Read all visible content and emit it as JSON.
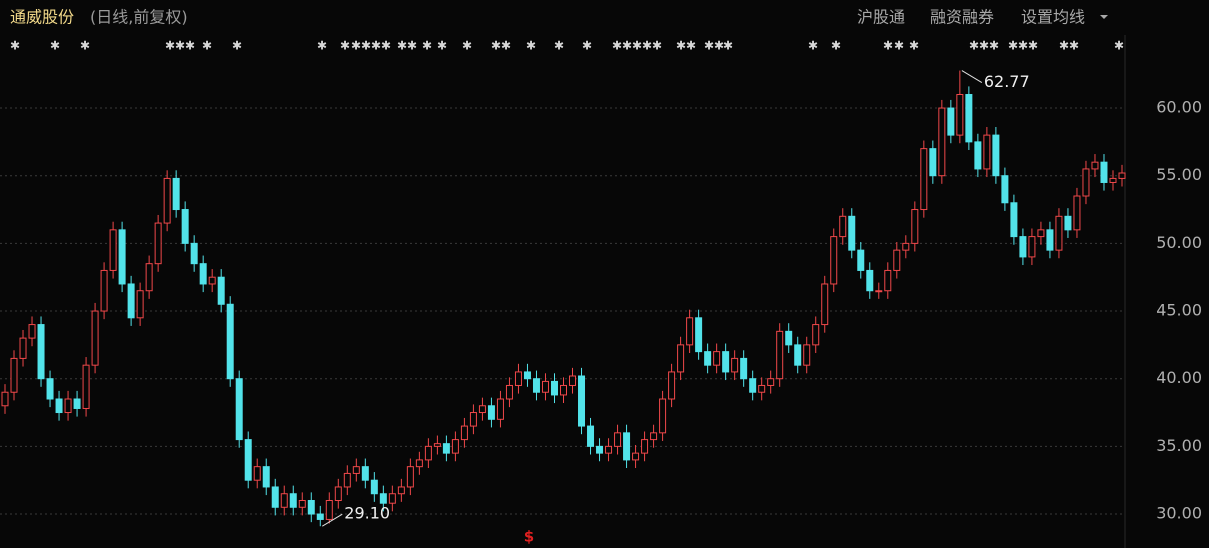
{
  "header": {
    "title": "通威股份",
    "subtitle": "(日线,前复权)",
    "menu": [
      "沪股通",
      "融资融券",
      "设置均线"
    ]
  },
  "chart_data": {
    "type": "candlestick",
    "series": [
      {
        "name": "通威股份",
        "up_color": "#f0484a",
        "down_color": "#52e3ea",
        "open": [
          38.0,
          39.0,
          41.5,
          43.0,
          44.0,
          40.0,
          38.5,
          37.5,
          38.5,
          37.8,
          41.0,
          45.0,
          48.0,
          51.0,
          47.0,
          44.5,
          46.5,
          48.5,
          51.5,
          54.8,
          52.5,
          50.0,
          48.5,
          47.0,
          47.5,
          45.5,
          40.0,
          35.5,
          32.5,
          33.5,
          32.0,
          30.5,
          31.5,
          30.5,
          31.0,
          30.0,
          29.6,
          31.0,
          32.0,
          33.0,
          33.5,
          32.5,
          31.5,
          30.8,
          31.5,
          32.0,
          33.5,
          34.0,
          35.0,
          35.2,
          34.5,
          35.5,
          36.5,
          37.5,
          38.0,
          37.0,
          38.5,
          39.5,
          40.5,
          40.0,
          39.0,
          39.8,
          38.8,
          39.5,
          40.2,
          36.5,
          35.0,
          34.5,
          35.0,
          36.0,
          34.0,
          34.5,
          35.5,
          36.0,
          38.5,
          40.5,
          42.5,
          44.5,
          42.0,
          41.0,
          42.0,
          40.5,
          41.5,
          40.0,
          39.0,
          39.5,
          40.0,
          43.5,
          42.5,
          41.0,
          42.5,
          44.0,
          47.0,
          50.5,
          52.0,
          49.5,
          48.0,
          46.5,
          46.5,
          48.0,
          49.5,
          50.0,
          52.5,
          57.0,
          55.0,
          60.0,
          58.0,
          61.0,
          57.5,
          55.5,
          58.0,
          55.0,
          53.0,
          50.5,
          49.0,
          50.5,
          51.0,
          49.5,
          52.0,
          51.0,
          53.5,
          55.5,
          56.0,
          54.5,
          54.8
        ],
        "high": [
          39.6,
          42.1,
          43.6,
          44.6,
          44.6,
          40.6,
          39.1,
          39.1,
          39.1,
          41.6,
          45.6,
          48.6,
          51.6,
          51.6,
          47.6,
          47.1,
          49.1,
          52.1,
          55.4,
          55.4,
          53.1,
          50.6,
          49.1,
          48.1,
          48.1,
          46.1,
          40.6,
          36.1,
          34.1,
          34.1,
          32.6,
          32.1,
          32.1,
          31.6,
          31.6,
          30.6,
          31.6,
          32.6,
          33.6,
          34.1,
          34.1,
          33.1,
          32.1,
          32.1,
          32.6,
          34.1,
          34.6,
          35.6,
          35.8,
          35.8,
          36.1,
          37.1,
          38.1,
          38.6,
          38.6,
          39.1,
          40.1,
          41.1,
          41.1,
          40.6,
          40.4,
          40.4,
          40.1,
          40.8,
          40.8,
          37.1,
          35.6,
          35.6,
          36.6,
          36.6,
          35.1,
          36.1,
          36.6,
          39.1,
          41.1,
          43.1,
          45.1,
          45.1,
          42.6,
          42.6,
          42.6,
          42.1,
          42.1,
          40.6,
          40.1,
          40.6,
          44.1,
          44.1,
          43.1,
          43.1,
          44.6,
          47.6,
          51.1,
          52.6,
          52.6,
          50.1,
          48.6,
          47.1,
          48.6,
          50.1,
          50.6,
          53.1,
          57.6,
          57.6,
          60.6,
          60.6,
          62.77,
          61.6,
          58.1,
          58.6,
          58.6,
          55.6,
          53.6,
          51.1,
          51.1,
          51.6,
          51.6,
          52.6,
          52.6,
          54.1,
          56.1,
          56.6,
          56.6,
          55.4,
          55.8
        ],
        "low": [
          37.4,
          38.4,
          40.9,
          42.4,
          39.4,
          37.9,
          36.9,
          36.9,
          37.2,
          37.2,
          40.4,
          44.4,
          47.4,
          46.4,
          43.9,
          43.9,
          45.9,
          47.9,
          50.9,
          51.9,
          49.4,
          47.9,
          46.4,
          46.4,
          44.9,
          39.4,
          34.9,
          31.9,
          31.9,
          31.4,
          29.9,
          29.9,
          29.9,
          29.9,
          29.4,
          29.1,
          29.3,
          30.4,
          31.4,
          32.4,
          31.9,
          30.9,
          30.2,
          30.2,
          30.9,
          31.4,
          32.9,
          33.4,
          34.4,
          33.9,
          33.9,
          34.9,
          35.9,
          36.9,
          36.4,
          36.4,
          37.9,
          38.9,
          39.4,
          38.4,
          38.4,
          38.2,
          38.2,
          38.9,
          35.9,
          34.4,
          33.9,
          33.9,
          34.4,
          33.4,
          33.4,
          33.9,
          34.9,
          35.4,
          37.9,
          39.9,
          41.9,
          41.4,
          40.4,
          40.4,
          39.9,
          39.9,
          39.4,
          38.4,
          38.4,
          38.9,
          39.4,
          41.9,
          40.4,
          40.4,
          41.9,
          43.4,
          46.4,
          49.9,
          48.9,
          47.4,
          45.9,
          45.9,
          45.9,
          47.4,
          48.9,
          49.4,
          51.9,
          54.4,
          54.4,
          57.4,
          57.4,
          56.9,
          54.9,
          54.9,
          54.4,
          52.4,
          49.9,
          48.4,
          48.4,
          49.9,
          48.9,
          48.9,
          50.4,
          50.4,
          52.9,
          54.9,
          53.9,
          53.9,
          54.2
        ],
        "close": [
          39.0,
          41.5,
          43.0,
          44.0,
          40.0,
          38.5,
          37.5,
          38.5,
          37.8,
          41.0,
          45.0,
          48.0,
          51.0,
          47.0,
          44.5,
          46.5,
          48.5,
          51.5,
          54.8,
          52.5,
          50.0,
          48.5,
          47.0,
          47.5,
          45.5,
          40.0,
          35.5,
          32.5,
          33.5,
          32.0,
          30.5,
          31.5,
          30.5,
          31.0,
          30.0,
          29.6,
          31.0,
          32.0,
          33.0,
          33.5,
          32.5,
          31.5,
          30.8,
          31.5,
          32.0,
          33.5,
          34.0,
          35.0,
          35.2,
          34.5,
          35.5,
          36.5,
          37.5,
          38.0,
          37.0,
          38.5,
          39.5,
          40.5,
          40.0,
          39.0,
          39.8,
          38.8,
          39.5,
          40.2,
          36.5,
          35.0,
          34.5,
          35.0,
          36.0,
          34.0,
          34.5,
          35.5,
          36.0,
          38.5,
          40.5,
          42.5,
          44.5,
          42.0,
          41.0,
          42.0,
          40.5,
          41.5,
          40.0,
          39.0,
          39.5,
          40.0,
          43.5,
          42.5,
          41.0,
          42.5,
          44.0,
          47.0,
          50.5,
          52.0,
          49.5,
          48.0,
          46.5,
          46.5,
          48.0,
          49.5,
          50.0,
          52.5,
          57.0,
          55.0,
          60.0,
          58.0,
          61.0,
          57.5,
          55.5,
          58.0,
          55.0,
          53.0,
          50.5,
          49.0,
          50.5,
          51.0,
          49.5,
          52.0,
          51.0,
          53.5,
          55.5,
          56.0,
          54.5,
          54.8,
          55.2
        ]
      }
    ],
    "ylim": [
      27.49,
      63.55
    ],
    "yticks": [
      {
        "value": 30,
        "label": "30.00"
      },
      {
        "value": 35,
        "label": "35.00"
      },
      {
        "value": 40,
        "label": "40.00"
      },
      {
        "value": 45,
        "label": "45.00"
      },
      {
        "value": 50,
        "label": "50.00"
      },
      {
        "value": 55,
        "label": "55.00"
      },
      {
        "value": 60,
        "label": "60.00"
      }
    ],
    "grid": true,
    "annotations": [
      {
        "value": 62.77,
        "label": "62.77"
      },
      {
        "value": 29.1,
        "label": "29.10"
      }
    ],
    "event_marker": "$"
  }
}
